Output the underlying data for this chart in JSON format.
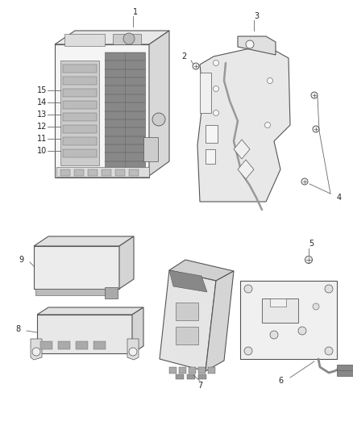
{
  "background": "#ffffff",
  "fig_width": 4.38,
  "fig_height": 5.33,
  "dpi": 100,
  "line_color": "#555555",
  "label_fontsize": 7.0,
  "leader_line_color": "#666666",
  "thin_lw": 0.5,
  "med_lw": 0.8,
  "thick_lw": 1.2
}
